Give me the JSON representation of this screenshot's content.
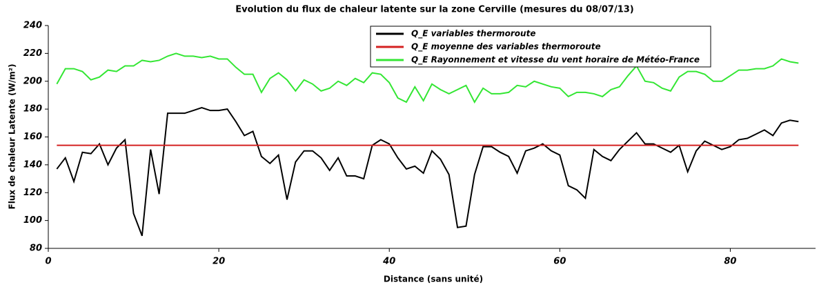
{
  "chart_data": {
    "type": "line",
    "title": "Evolution du flux de chaleur latente sur la zone Cerville (mesures du 08/07/13)",
    "x_label": "Distance (sans unité)",
    "y_label": "Flux de chaleur Latente (W/m²)",
    "x": [
      1,
      2,
      3,
      4,
      5,
      6,
      7,
      8,
      9,
      10,
      11,
      12,
      13,
      14,
      15,
      16,
      17,
      18,
      19,
      20,
      21,
      22,
      23,
      24,
      25,
      26,
      27,
      28,
      29,
      30,
      31,
      32,
      33,
      34,
      35,
      36,
      37,
      38,
      39,
      40,
      41,
      42,
      43,
      44,
      45,
      46,
      47,
      48,
      49,
      50,
      51,
      52,
      53,
      54,
      55,
      56,
      57,
      58,
      59,
      60,
      61,
      62,
      63,
      64,
      65,
      66,
      67,
      68,
      69,
      70,
      71,
      72,
      73,
      74,
      75,
      76,
      77,
      78,
      79,
      80,
      81,
      82,
      83,
      84,
      85,
      86,
      87,
      88
    ],
    "series": [
      {
        "name": "Q_E variables thermoroute",
        "color": "#000000",
        "values": [
          137,
          145,
          128,
          149,
          148,
          155,
          140,
          152,
          158,
          105,
          89,
          151,
          119,
          177,
          177,
          177,
          179,
          181,
          179,
          179,
          180,
          171,
          161,
          164,
          146,
          141,
          147,
          115,
          142,
          150,
          150,
          145,
          136,
          145,
          132,
          132,
          130,
          154,
          158,
          155,
          145,
          137,
          139,
          134,
          150,
          144,
          133,
          95,
          96,
          133,
          153,
          153,
          149,
          146,
          134,
          150,
          152,
          155,
          150,
          147,
          125,
          122,
          116,
          151,
          146,
          143,
          151,
          157,
          163,
          155,
          155,
          152,
          149,
          154,
          135,
          150,
          157,
          154,
          151,
          153,
          158,
          159,
          162,
          165,
          161,
          170,
          172,
          171
        ]
      },
      {
        "name": "Q_E moyenne des variables thermoroute",
        "color": "#d42020",
        "values": [
          154,
          154,
          154,
          154,
          154,
          154,
          154,
          154,
          154,
          154,
          154,
          154,
          154,
          154,
          154,
          154,
          154,
          154,
          154,
          154,
          154,
          154,
          154,
          154,
          154,
          154,
          154,
          154,
          154,
          154,
          154,
          154,
          154,
          154,
          154,
          154,
          154,
          154,
          154,
          154,
          154,
          154,
          154,
          154,
          154,
          154,
          154,
          154,
          154,
          154,
          154,
          154,
          154,
          154,
          154,
          154,
          154,
          154,
          154,
          154,
          154,
          154,
          154,
          154,
          154,
          154,
          154,
          154,
          154,
          154,
          154,
          154,
          154,
          154,
          154,
          154,
          154,
          154,
          154,
          154,
          154,
          154,
          154,
          154,
          154,
          154,
          154,
          154
        ]
      },
      {
        "name": "Q_E Rayonnement et vitesse du vent horaire de Météo-France",
        "color": "#33e633",
        "values": [
          198,
          209,
          209,
          207,
          201,
          203,
          208,
          207,
          211,
          211,
          215,
          214,
          215,
          218,
          220,
          218,
          218,
          217,
          218,
          216,
          216,
          210,
          205,
          205,
          192,
          202,
          206,
          201,
          193,
          201,
          198,
          193,
          195,
          200,
          197,
          202,
          199,
          206,
          205,
          199,
          188,
          185,
          196,
          186,
          198,
          194,
          191,
          194,
          197,
          185,
          195,
          191,
          191,
          192,
          197,
          196,
          200,
          198,
          196,
          195,
          189,
          192,
          192,
          191,
          189,
          194,
          196,
          204,
          211,
          200,
          199,
          195,
          193,
          203,
          207,
          207,
          205,
          200,
          200,
          204,
          208,
          208,
          209,
          209,
          211,
          216,
          214,
          213
        ]
      }
    ],
    "xlim": [
      0,
      90
    ],
    "xticks": [
      0,
      20,
      40,
      60,
      80
    ],
    "ylim": [
      80,
      240
    ],
    "yticks": [
      80,
      100,
      120,
      140,
      160,
      180,
      200,
      220,
      240
    ],
    "legend": "top"
  }
}
